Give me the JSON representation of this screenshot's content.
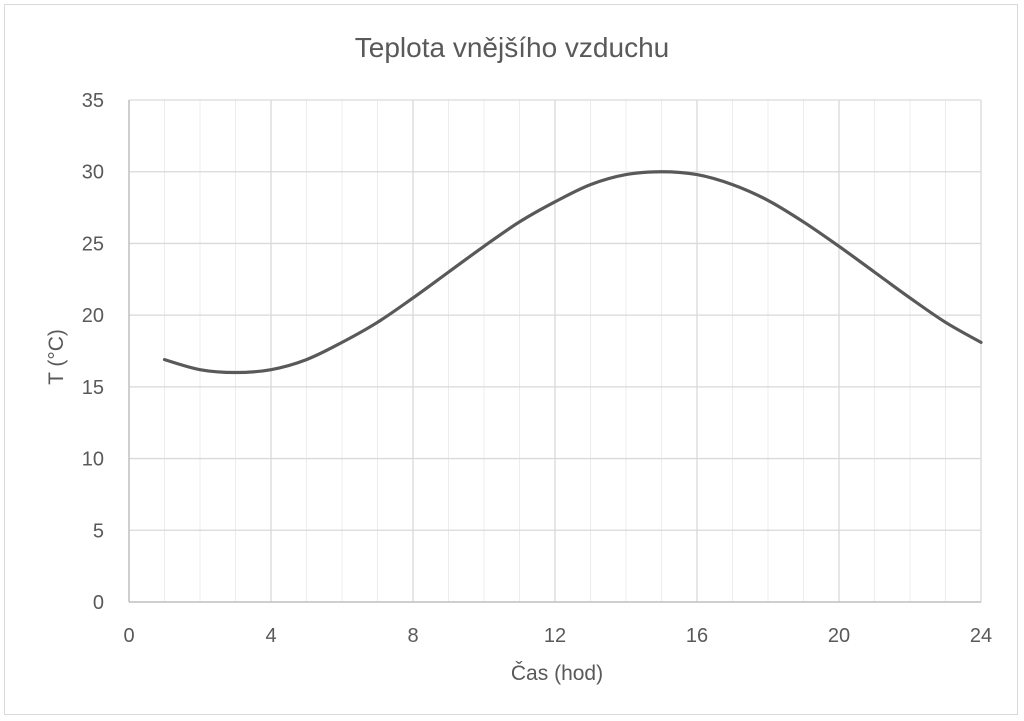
{
  "chart_data": {
    "type": "line",
    "title": "Teplota vnějšího vzduchu",
    "xlabel": "Čas (hod)",
    "ylabel": "T (°C)",
    "xlim": [
      0,
      24
    ],
    "ylim": [
      0,
      35
    ],
    "x_ticks": [
      0,
      4,
      8,
      12,
      16,
      20,
      24
    ],
    "y_ticks": [
      0,
      5,
      10,
      15,
      20,
      25,
      30,
      35
    ],
    "x_minor_step": 1,
    "grid": true,
    "colors": {
      "line": "#595959",
      "grid": "#d9d9d9",
      "axis": "#bfbfbf",
      "text": "#595959"
    },
    "series": [
      {
        "x": [
          1,
          2,
          3,
          4,
          5,
          6,
          7,
          8,
          9,
          10,
          11,
          12,
          13,
          14,
          15,
          16,
          17,
          18,
          19,
          20,
          21,
          22,
          23,
          24
        ],
        "y": [
          16.9,
          16.2,
          16.0,
          16.2,
          16.9,
          18.1,
          19.5,
          21.2,
          23.0,
          24.8,
          26.5,
          27.9,
          29.1,
          29.8,
          30.0,
          29.8,
          29.1,
          28.0,
          26.5,
          24.8,
          23.0,
          21.2,
          19.5,
          18.1
        ]
      }
    ]
  }
}
